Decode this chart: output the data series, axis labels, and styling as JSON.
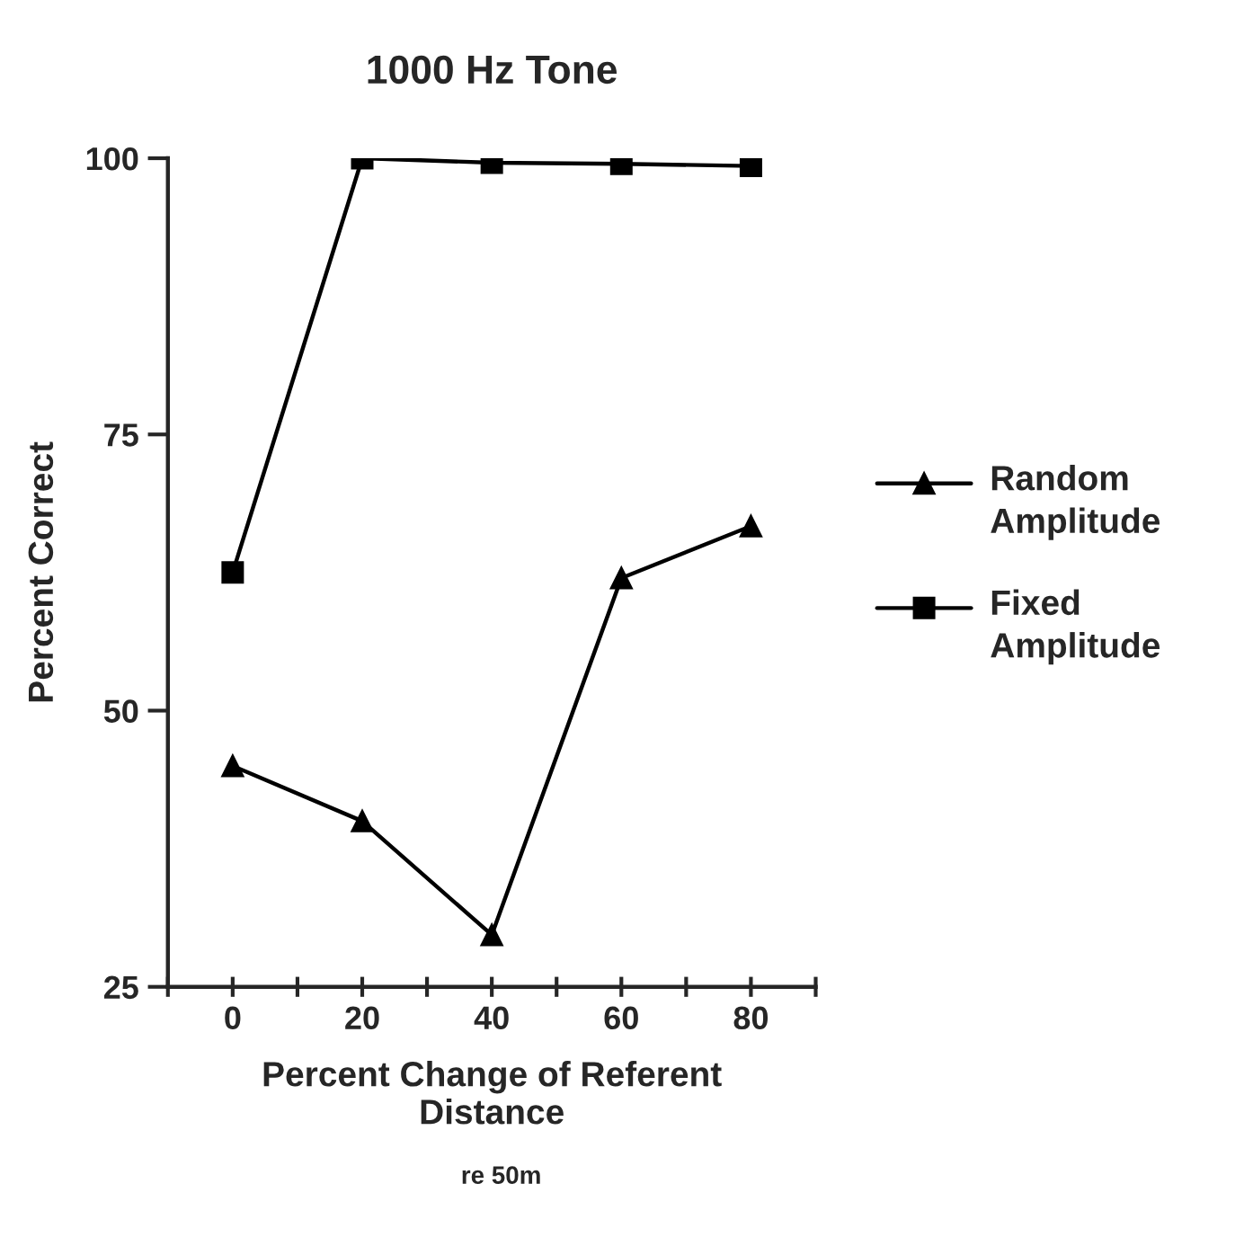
{
  "chart_data": {
    "type": "line",
    "title": "1000 Hz Tone",
    "xlabel": "Percent Change of Referent\nDistance",
    "ylabel": "Percent Correct",
    "annotations": [
      "re 50m"
    ],
    "x": [
      0,
      20,
      40,
      60,
      80
    ],
    "series": [
      {
        "name": "Random\nAmplitude",
        "color": "#000000",
        "marker": "triangle",
        "values": [
          45,
          40,
          29.7,
          62,
          66.7
        ]
      },
      {
        "name": "Fixed\nAmplitude",
        "color": "#000000",
        "marker": "square",
        "values": [
          62.5,
          100,
          99.6,
          99.5,
          99.3
        ]
      }
    ],
    "xlim": [
      -10,
      90
    ],
    "xticks": [
      {
        "value": -10,
        "label": null
      },
      0,
      {
        "value": 10,
        "label": null
      },
      20,
      {
        "value": 30,
        "label": null
      },
      40,
      {
        "value": 50,
        "label": null
      },
      60,
      {
        "value": 70,
        "label": null
      },
      80,
      {
        "value": 90,
        "label": null
      }
    ],
    "ylim": [
      25,
      100
    ],
    "yticks": [
      25,
      50,
      75,
      100
    ],
    "grid": false,
    "legend": "right",
    "line_style": "solid"
  }
}
